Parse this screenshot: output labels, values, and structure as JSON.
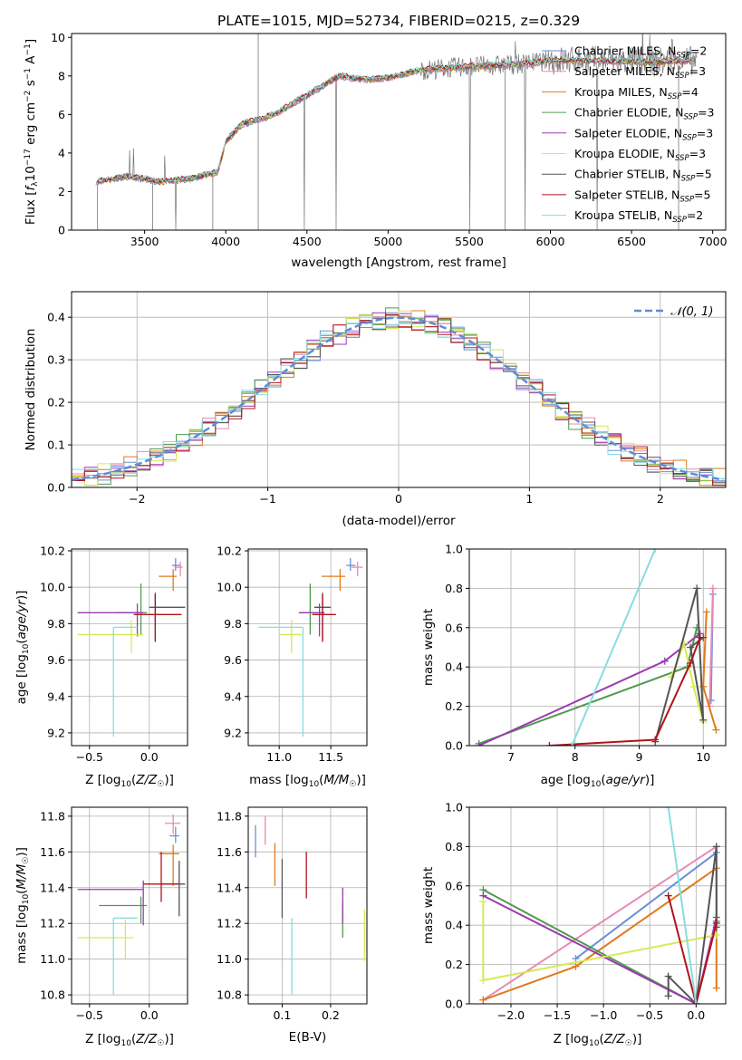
{
  "figure_title": "PLATE=1015, MJD=52734, FIBERID=0215, z=0.329",
  "colors": {
    "chabrier_miles": "#6a8fd8",
    "salpeter_miles": "#e88ab4",
    "kroupa_miles": "#e07b1a",
    "chabrier_elodie": "#4f9a4f",
    "salpeter_elodie": "#9a3ab0",
    "kroupa_elodie": "#d6ea55",
    "chabrier_stelib": "#555555",
    "salpeter_stelib": "#b0141c",
    "kroupa_stelib": "#86dde0",
    "data": "#777777",
    "normal": "#5b8ed6"
  },
  "chart_data": [
    {
      "id": "spectrum",
      "type": "line",
      "title": "PLATE=1015, MJD=52734, FIBERID=0215, z=0.329",
      "xlabel": "wavelength [Angstrom, rest frame]",
      "ylabel": "Flux [f_λ10^-17 erg cm^-2 s^-1 A^-1]",
      "xlim": [
        3050,
        7080
      ],
      "ylim": [
        0,
        10.2
      ],
      "xticks": [
        3500,
        4000,
        4500,
        5000,
        5500,
        6000,
        6500,
        7000
      ],
      "yticks": [
        0,
        2,
        4,
        6,
        8,
        10
      ],
      "grid": false,
      "legend_position": "right",
      "legend": [
        {
          "label": "Chabrier MILES, N",
          "sub": "SSP",
          "tail": "=2",
          "key": "chabrier_miles"
        },
        {
          "label": "Salpeter MILES, N",
          "sub": "SSP",
          "tail": "=3",
          "key": "salpeter_miles"
        },
        {
          "label": "Kroupa MILES, N",
          "sub": "SSP",
          "tail": "=4",
          "key": "kroupa_miles"
        },
        {
          "label": "Chabrier ELODIE, N",
          "sub": "SSP",
          "tail": "=3",
          "key": "chabrier_elodie"
        },
        {
          "label": "Salpeter ELODIE, N",
          "sub": "SSP",
          "tail": "=3",
          "key": "salpeter_elodie"
        },
        {
          "label": "Kroupa ELODIE, N",
          "sub": "SSP",
          "tail": "=3",
          "key": "kroupa_elodie"
        },
        {
          "label": "Chabrier STELIB, N",
          "sub": "SSP",
          "tail": "=5",
          "key": "chabrier_stelib"
        },
        {
          "label": "Salpeter STELIB, N",
          "sub": "SSP",
          "tail": "=5",
          "key": "salpeter_stelib"
        },
        {
          "label": "Kroupa STELIB, N",
          "sub": "SSP",
          "tail": "=2",
          "key": "kroupa_stelib"
        }
      ],
      "continuum": [
        [
          3200,
          2.5
        ],
        [
          3400,
          2.8
        ],
        [
          3600,
          2.5
        ],
        [
          3800,
          2.7
        ],
        [
          3950,
          3.0
        ],
        [
          4000,
          4.6
        ],
        [
          4100,
          5.5
        ],
        [
          4300,
          6.0
        ],
        [
          4500,
          7.0
        ],
        [
          4700,
          8.0
        ],
        [
          4860,
          7.8
        ],
        [
          5000,
          7.9
        ],
        [
          5200,
          8.3
        ],
        [
          5500,
          8.5
        ],
        [
          5800,
          8.6
        ],
        [
          6000,
          8.8
        ],
        [
          6300,
          8.8
        ],
        [
          6600,
          8.7
        ],
        [
          6900,
          8.8
        ]
      ]
    },
    {
      "id": "residuals",
      "type": "line",
      "xlabel": "(data-model)/error",
      "ylabel": "Normed distribution",
      "xlim": [
        -2.5,
        2.5
      ],
      "ylim": [
        0,
        0.46
      ],
      "xticks": [
        -2,
        -1,
        0,
        1,
        2
      ],
      "yticks": [
        0.0,
        0.1,
        0.2,
        0.3,
        0.4
      ],
      "grid": true,
      "legend_position": "top-right",
      "legend": [
        {
          "label": "𝒩(0, 1)",
          "key": "normal"
        }
      ]
    },
    {
      "id": "age_vs_Z",
      "type": "scatter",
      "xlabel": "Z [log10(Z/Z☉)]",
      "ylabel": "age [log10(age/yr)]",
      "xlim": [
        -0.65,
        0.32
      ],
      "ylim": [
        9.13,
        10.21
      ],
      "xticks": [
        -0.5,
        0.0
      ],
      "yticks": [
        9.2,
        9.4,
        9.6,
        9.8,
        10.0,
        10.2
      ],
      "grid": true,
      "points": [
        {
          "key": "chabrier_miles",
          "x": 0.22,
          "xerr": [
            0.03,
            0.04
          ],
          "y": 10.12,
          "yerr": [
            0.03,
            0.04
          ]
        },
        {
          "key": "salpeter_miles",
          "x": 0.26,
          "xerr": [
            0.05,
            0.02
          ],
          "y": 10.11,
          "yerr": [
            0.05,
            0.03
          ]
        },
        {
          "key": "kroupa_miles",
          "x": 0.2,
          "xerr": [
            0.12,
            0.03
          ],
          "y": 10.06,
          "yerr": [
            0.08,
            0.04
          ]
        },
        {
          "key": "chabrier_elodie",
          "x": -0.07,
          "xerr": [
            0.2,
            0.05
          ],
          "y": 9.86,
          "yerr": [
            0.12,
            0.16
          ]
        },
        {
          "key": "salpeter_elodie",
          "x": -0.1,
          "xerr": [
            0.5,
            0.05
          ],
          "y": 9.86,
          "yerr": [
            0.13,
            0.05
          ]
        },
        {
          "key": "kroupa_elodie",
          "x": -0.15,
          "xerr": [
            0.45,
            0.1
          ],
          "y": 9.74,
          "yerr": [
            0.1,
            0.08
          ]
        },
        {
          "key": "chabrier_stelib",
          "x": 0.05,
          "xerr": [
            0.05,
            0.25
          ],
          "y": 9.89,
          "yerr": [
            0.18,
            0.08
          ]
        },
        {
          "key": "salpeter_stelib",
          "x": 0.05,
          "xerr": [
            0.18,
            0.22
          ],
          "y": 9.85,
          "yerr": [
            0.15,
            0.11
          ]
        },
        {
          "key": "kroupa_stelib",
          "x": -0.3,
          "xerr": [
            0.0,
            0.2
          ],
          "y": 9.78,
          "yerr": [
            0.6,
            0.0
          ]
        }
      ]
    },
    {
      "id": "age_vs_mass",
      "type": "scatter",
      "xlabel": "mass [log10(M/M☉)]",
      "ylabel": "",
      "xlim": [
        10.7,
        11.85
      ],
      "ylim": [
        9.13,
        10.21
      ],
      "xticks": [
        11.0,
        11.5
      ],
      "yticks": [
        9.2,
        9.4,
        9.6,
        9.8,
        10.0,
        10.2
      ],
      "grid": true,
      "points": [
        {
          "key": "chabrier_miles",
          "x": 11.69,
          "xerr": [
            0.04,
            0.05
          ],
          "y": 10.12,
          "yerr": [
            0.03,
            0.04
          ]
        },
        {
          "key": "salpeter_miles",
          "x": 11.76,
          "xerr": [
            0.06,
            0.05
          ],
          "y": 10.11,
          "yerr": [
            0.05,
            0.03
          ]
        },
        {
          "key": "kroupa_miles",
          "x": 11.59,
          "xerr": [
            0.18,
            0.05
          ],
          "y": 10.06,
          "yerr": [
            0.08,
            0.04
          ]
        },
        {
          "key": "chabrier_elodie",
          "x": 11.3,
          "xerr": [
            0.1,
            0.05
          ],
          "y": 9.86,
          "yerr": [
            0.12,
            0.16
          ]
        },
        {
          "key": "salpeter_elodie",
          "x": 11.39,
          "xerr": [
            0.2,
            0.05
          ],
          "y": 9.86,
          "yerr": [
            0.13,
            0.05
          ]
        },
        {
          "key": "kroupa_elodie",
          "x": 11.12,
          "xerr": [
            0.12,
            0.1
          ],
          "y": 9.74,
          "yerr": [
            0.1,
            0.08
          ]
        },
        {
          "key": "chabrier_stelib",
          "x": 11.42,
          "xerr": [
            0.08,
            0.08
          ],
          "y": 9.89,
          "yerr": [
            0.18,
            0.08
          ]
        },
        {
          "key": "salpeter_stelib",
          "x": 11.42,
          "xerr": [
            0.1,
            0.13
          ],
          "y": 9.85,
          "yerr": [
            0.15,
            0.11
          ]
        },
        {
          "key": "kroupa_stelib",
          "x": 11.23,
          "xerr": [
            0.43,
            0.0
          ],
          "y": 9.78,
          "yerr": [
            0.6,
            0.0
          ]
        }
      ]
    },
    {
      "id": "mass_vs_Z",
      "type": "scatter",
      "xlabel": "Z [log10(Z/Z☉)]",
      "ylabel": "mass [log10(M/M☉)]",
      "xlim": [
        -0.65,
        0.32
      ],
      "ylim": [
        10.75,
        11.85
      ],
      "xticks": [
        -0.5,
        0.0
      ],
      "yticks": [
        10.8,
        11.0,
        11.2,
        11.4,
        11.6,
        11.8
      ],
      "grid": true,
      "points": [
        {
          "key": "chabrier_miles",
          "x": 0.22,
          "xerr": [
            0.05,
            0.03
          ],
          "y": 11.69,
          "yerr": [
            0.04,
            0.05
          ]
        },
        {
          "key": "salpeter_miles",
          "x": 0.2,
          "xerr": [
            0.07,
            0.06
          ],
          "y": 11.76,
          "yerr": [
            0.06,
            0.05
          ]
        },
        {
          "key": "kroupa_miles",
          "x": 0.2,
          "xerr": [
            0.12,
            0.05
          ],
          "y": 11.59,
          "yerr": [
            0.18,
            0.05
          ]
        },
        {
          "key": "chabrier_elodie",
          "x": -0.07,
          "xerr": [
            0.35,
            0.05
          ],
          "y": 11.3,
          "yerr": [
            0.1,
            0.05
          ]
        },
        {
          "key": "salpeter_elodie",
          "x": -0.05,
          "xerr": [
            0.55,
            0.0
          ],
          "y": 11.39,
          "yerr": [
            0.2,
            0.05
          ]
        },
        {
          "key": "kroupa_elodie",
          "x": -0.2,
          "xerr": [
            0.4,
            0.07
          ],
          "y": 11.12,
          "yerr": [
            0.12,
            0.1
          ]
        },
        {
          "key": "chabrier_stelib",
          "x": 0.25,
          "xerr": [
            0.15,
            0.05
          ],
          "y": 11.42,
          "yerr": [
            0.18,
            0.13
          ]
        },
        {
          "key": "salpeter_stelib",
          "x": 0.1,
          "xerr": [
            0.15,
            0.15
          ],
          "y": 11.42,
          "yerr": [
            0.1,
            0.18
          ]
        },
        {
          "key": "kroupa_stelib",
          "x": -0.3,
          "xerr": [
            0.0,
            0.2
          ],
          "y": 11.23,
          "yerr": [
            0.43,
            0.0
          ]
        }
      ]
    },
    {
      "id": "mass_vs_ebv",
      "type": "scatter",
      "xlabel": "E(B-V)",
      "ylabel": "",
      "xlim": [
        0.03,
        0.275
      ],
      "ylim": [
        10.75,
        11.85
      ],
      "xticks": [
        0.1,
        0.2
      ],
      "yticks": [
        10.8,
        11.0,
        11.2,
        11.4,
        11.6,
        11.8
      ],
      "grid": true,
      "points": [
        {
          "key": "chabrier_miles",
          "x": 0.045,
          "y": 11.65,
          "yerr": [
            0.08,
            0.1
          ]
        },
        {
          "key": "salpeter_miles",
          "x": 0.065,
          "y": 11.72,
          "yerr": [
            0.08,
            0.08
          ]
        },
        {
          "key": "kroupa_miles",
          "x": 0.085,
          "y": 11.53,
          "yerr": [
            0.12,
            0.12
          ]
        },
        {
          "key": "chabrier_stelib",
          "x": 0.1,
          "y": 11.4,
          "yerr": [
            0.17,
            0.16
          ]
        },
        {
          "key": "kroupa_stelib",
          "x": 0.12,
          "y": 11.03,
          "yerr": [
            0.23,
            0.2
          ]
        },
        {
          "key": "salpeter_stelib",
          "x": 0.15,
          "y": 11.47,
          "yerr": [
            0.13,
            0.13
          ]
        },
        {
          "key": "chabrier_elodie",
          "x": 0.225,
          "y": 11.22,
          "yerr": [
            0.1,
            0.1
          ]
        },
        {
          "key": "salpeter_elodie",
          "x": 0.225,
          "y": 11.3,
          "yerr": [
            0.1,
            0.1
          ]
        },
        {
          "key": "kroupa_elodie",
          "x": 0.27,
          "y": 11.14,
          "yerr": [
            0.15,
            0.14
          ]
        }
      ]
    },
    {
      "id": "weight_vs_age",
      "type": "line",
      "xlabel": "age [log10(age/yr)]",
      "ylabel": "mass weight",
      "xlim": [
        6.35,
        10.35
      ],
      "ylim": [
        0,
        1
      ],
      "xticks": [
        7,
        8,
        9,
        10
      ],
      "yticks": [
        0.0,
        0.2,
        0.4,
        0.6,
        0.8,
        1.0
      ],
      "grid": true,
      "series": [
        {
          "key": "chabrier_miles",
          "x": [
            10.12,
            10.15
          ],
          "y": [
            0.23,
            0.77
          ]
        },
        {
          "key": "salpeter_miles",
          "x": [
            10.1,
            10.15
          ],
          "y": [
            0.2,
            0.8
          ]
        },
        {
          "key": "kroupa_miles",
          "x": [
            10.05,
            10.0,
            10.2
          ],
          "y": [
            0.68,
            0.3,
            0.08
          ]
        },
        {
          "key": "chabrier_elodie",
          "x": [
            6.5,
            9.75,
            9.9
          ],
          "y": [
            0.01,
            0.4,
            0.6
          ]
        },
        {
          "key": "salpeter_elodie",
          "x": [
            6.5,
            9.4,
            9.95
          ],
          "y": [
            0.0,
            0.43,
            0.57
          ]
        },
        {
          "key": "kroupa_elodie",
          "x": [
            9.5,
            9.7,
            9.85,
            10.0
          ],
          "y": [
            0.35,
            0.52,
            0.3,
            0.12
          ]
        },
        {
          "key": "chabrier_stelib",
          "x": [
            9.25,
            9.9,
            10.0,
            9.8,
            10.0
          ],
          "y": [
            0.02,
            0.8,
            0.13,
            0.5,
            0.55
          ]
        },
        {
          "key": "salpeter_stelib",
          "x": [
            7.6,
            9.25,
            9.8,
            9.95
          ],
          "y": [
            0.0,
            0.03,
            0.42,
            0.55
          ]
        },
        {
          "key": "kroupa_stelib",
          "x": [
            7.95,
            9.25
          ],
          "y": [
            0.0,
            1.0
          ]
        }
      ]
    },
    {
      "id": "weight_vs_Z",
      "type": "line",
      "xlabel": "Z [log10(Z/Z☉)]",
      "ylabel": "mass weight",
      "xlim": [
        -2.45,
        0.32
      ],
      "ylim": [
        0,
        1
      ],
      "xticks": [
        -2.0,
        -1.5,
        -1.0,
        -0.5,
        0.0
      ],
      "yticks": [
        0.0,
        0.2,
        0.4,
        0.6,
        0.8,
        1.0
      ],
      "grid": true,
      "series": [
        {
          "key": "chabrier_miles",
          "x": [
            -1.3,
            0.22
          ],
          "y": [
            0.23,
            0.77
          ]
        },
        {
          "key": "salpeter_miles",
          "x": [
            -2.3,
            0.22
          ],
          "y": [
            0.02,
            0.8
          ]
        },
        {
          "key": "kroupa_miles",
          "x": [
            -2.3,
            -1.3,
            0.22,
            0.22
          ],
          "y": [
            0.02,
            0.19,
            0.69,
            0.08
          ]
        },
        {
          "key": "chabrier_elodie",
          "x": [
            -2.3,
            0.0,
            0.22
          ],
          "y": [
            0.58,
            0.0,
            0.42
          ]
        },
        {
          "key": "salpeter_elodie",
          "x": [
            -2.3,
            0.0,
            0.22
          ],
          "y": [
            0.55,
            0.0,
            0.44
          ]
        },
        {
          "key": "kroupa_elodie",
          "x": [
            -2.3,
            -2.3,
            0.22
          ],
          "y": [
            0.52,
            0.12,
            0.35
          ]
        },
        {
          "key": "chabrier_stelib",
          "x": [
            -0.3,
            -0.3,
            0.0,
            0.22,
            0.22
          ],
          "y": [
            0.04,
            0.14,
            0.0,
            0.8,
            0.39
          ]
        },
        {
          "key": "salpeter_stelib",
          "x": [
            -0.3,
            0.0,
            0.22
          ],
          "y": [
            0.55,
            0.0,
            0.41
          ]
        },
        {
          "key": "kroupa_stelib",
          "x": [
            -0.3,
            0.0
          ],
          "y": [
            1.0,
            0.0
          ]
        }
      ]
    }
  ]
}
